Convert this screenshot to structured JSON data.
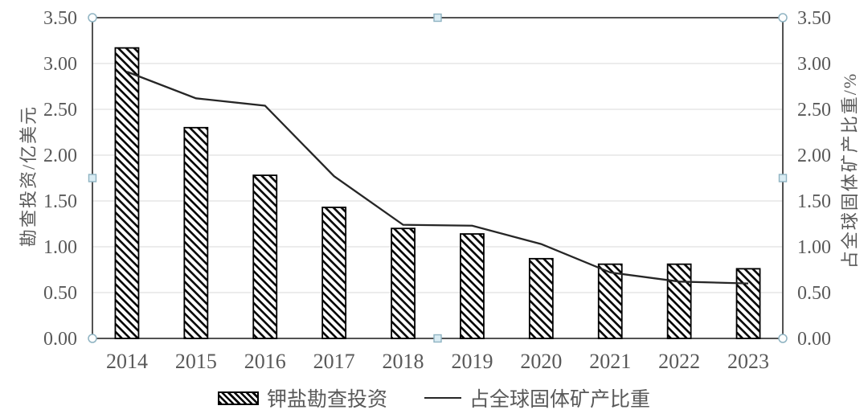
{
  "chart_data": {
    "type": "combo",
    "title": "",
    "categories": [
      "2014",
      "2015",
      "2016",
      "2017",
      "2018",
      "2019",
      "2020",
      "2021",
      "2022",
      "2023"
    ],
    "series": [
      {
        "name": "钾盐勘查投资",
        "type": "bar",
        "axis": "left",
        "values": [
          3.17,
          2.3,
          1.78,
          1.43,
          1.2,
          1.14,
          0.87,
          0.81,
          0.81,
          0.76
        ]
      },
      {
        "name": "占全球固体矿产比重",
        "type": "line",
        "axis": "right",
        "values": [
          2.91,
          2.62,
          2.54,
          1.77,
          1.24,
          1.23,
          1.03,
          0.72,
          0.62,
          0.6
        ]
      }
    ],
    "xlabel": "",
    "ylabel_left": "勘查投资/亿美元",
    "ylabel_right": "占全球固体矿产比重/%",
    "ylim": [
      0,
      3.5
    ],
    "ytick_step": 0.5,
    "y_ticks": [
      "0.00",
      "0.50",
      "1.00",
      "1.50",
      "2.00",
      "2.50",
      "3.00",
      "3.50"
    ],
    "grid": "horizontal",
    "legend_position": "bottom"
  },
  "selection": {
    "plot_area_selected": true,
    "corner_handle_shape": "circle",
    "edge_handle_shape": "square"
  },
  "colors": {
    "bar_fill": "#ffffff",
    "bar_hatch": "#000000",
    "bar_border": "#000000",
    "line_series": "#262626",
    "gridline": "#d9d9d9",
    "plot_border": "#404040",
    "tick_text": "#595959",
    "handle_border": "#8fb3c2",
    "handle_square_fill": "#d9ecf3",
    "handle_circle_fill": "#fdfefe"
  }
}
